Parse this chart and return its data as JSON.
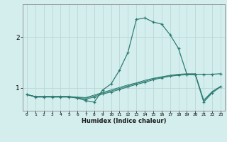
{
  "xlabel": "Humidex (Indice chaleur)",
  "x_values": [
    0,
    1,
    2,
    3,
    4,
    5,
    6,
    7,
    8,
    9,
    10,
    11,
    12,
    13,
    14,
    15,
    16,
    17,
    18,
    19,
    20,
    21,
    22,
    23
  ],
  "line1": [
    0.87,
    0.82,
    0.82,
    0.82,
    0.82,
    0.82,
    0.8,
    0.75,
    0.72,
    0.96,
    1.08,
    1.35,
    1.7,
    2.35,
    2.38,
    2.3,
    2.26,
    2.05,
    1.78,
    1.27,
    1.27,
    1.27,
    1.27,
    1.28
  ],
  "line2": [
    0.87,
    0.83,
    0.83,
    0.83,
    0.83,
    0.83,
    0.8,
    0.78,
    0.82,
    0.88,
    0.92,
    0.97,
    1.02,
    1.07,
    1.11,
    1.16,
    1.2,
    1.23,
    1.25,
    1.26,
    1.26,
    0.72,
    0.9,
    1.02
  ],
  "line3": [
    0.87,
    0.83,
    0.83,
    0.83,
    0.83,
    0.83,
    0.81,
    0.8,
    0.84,
    0.9,
    0.94,
    0.99,
    1.04,
    1.09,
    1.13,
    1.18,
    1.21,
    1.24,
    1.26,
    1.27,
    1.27,
    0.74,
    0.92,
    1.03
  ],
  "line4": [
    0.87,
    0.83,
    0.83,
    0.83,
    0.83,
    0.83,
    0.82,
    0.81,
    0.86,
    0.91,
    0.96,
    1.01,
    1.06,
    1.1,
    1.15,
    1.19,
    1.22,
    1.25,
    1.27,
    1.28,
    1.28,
    0.76,
    0.93,
    1.03
  ],
  "bg_color": "#d4eeee",
  "line_color": "#2e7d72",
  "grid_color": "#b8d8d8",
  "ylim": [
    0.55,
    2.65
  ],
  "yticks": [
    1,
    2
  ],
  "xlim": [
    -0.5,
    23.5
  ]
}
